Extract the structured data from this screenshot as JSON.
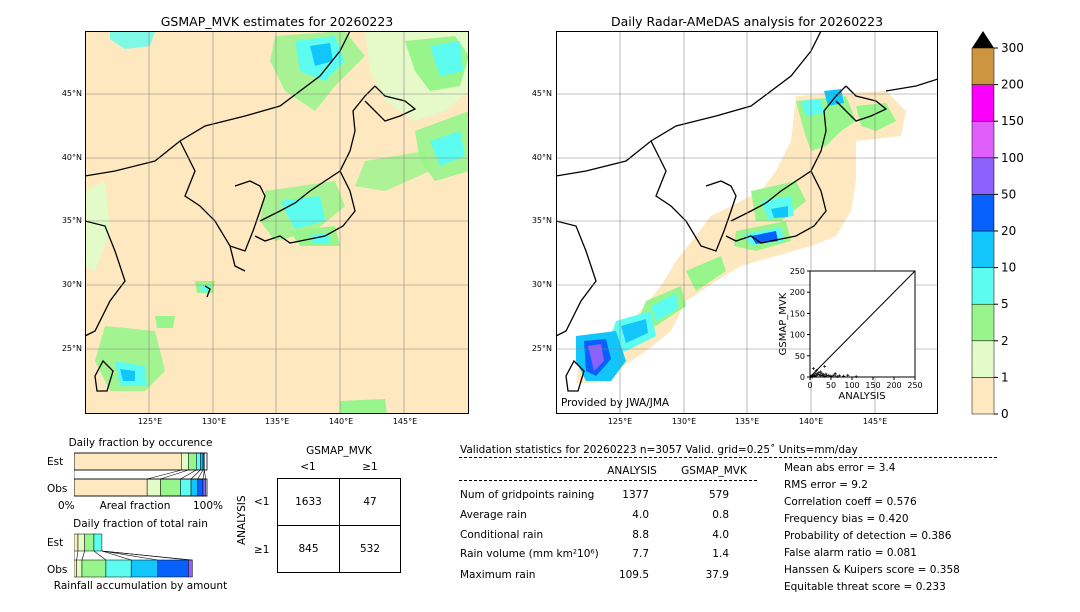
{
  "left_map": {
    "title": "GSMAP_MVK estimates for 20260223",
    "lon_labels": [
      "125°E",
      "130°E",
      "135°E",
      "140°E",
      "145°E"
    ],
    "lat_labels": [
      "45°N",
      "40°N",
      "35°N",
      "30°N",
      "25°N"
    ]
  },
  "right_map": {
    "title": "Daily Radar-AMeDAS analysis for 20260223",
    "lon_labels": [
      "125°E",
      "130°E",
      "135°E",
      "140°E",
      "145°E"
    ],
    "lat_labels": [
      "45°N",
      "40°N",
      "35°N",
      "30°N",
      "25°N"
    ],
    "credit": "Provided by JWA/JMA"
  },
  "scatter": {
    "xlabel": "ANALYSIS",
    "ylabel": "GSMAP_MVK",
    "ticks": [
      "0",
      "50",
      "100",
      "150",
      "200",
      "250"
    ]
  },
  "colorbar": {
    "labels": [
      "0",
      "1",
      "2",
      "5",
      "10",
      "20",
      "50",
      "100",
      "150",
      "200",
      "300"
    ],
    "colors": [
      "#fde8bf",
      "#e3fbc9",
      "#98f58b",
      "#5cfcf0",
      "#12c6fb",
      "#0660fb",
      "#8d61fb",
      "#e05ffb",
      "#fb00fb",
      "#cd9540"
    ],
    "extend_color": "#000000"
  },
  "occurrence": {
    "title": "Daily fraction by occurence",
    "row_est": "Est",
    "row_obs": "Obs",
    "axis_left": "0%",
    "axis_mid": "Areal fraction",
    "axis_right": "100%"
  },
  "total_rain": {
    "title": "Daily fraction of total rain",
    "row_est": "Est",
    "row_obs": "Obs",
    "footer": "Rainfall accumulation by amount"
  },
  "contingency": {
    "col_title": "GSMAP_MVK",
    "col_lt": "<1",
    "col_ge": "≥1",
    "row_title": "ANALYSIS",
    "row_lt": "<1",
    "row_ge": "≥1",
    "a": "1633",
    "b": "47",
    "c": "845",
    "d": "532"
  },
  "validation": {
    "header": "Validation statistics for 20260223  n=3057 Valid. grid=0.25˚ Units=mm/day",
    "col_analysis": "ANALYSIS",
    "col_gsmap": "GSMAP_MVK",
    "rows": [
      {
        "label": "Num of gridpoints raining",
        "analysis": "1377",
        "gsmap": "579"
      },
      {
        "label": "Average rain",
        "analysis": "4.0",
        "gsmap": "0.8"
      },
      {
        "label": "Conditional rain",
        "analysis": "8.8",
        "gsmap": "4.0"
      },
      {
        "label": "Rain volume (mm km²10⁶)",
        "analysis": "7.7",
        "gsmap": "1.4"
      },
      {
        "label": "Maximum rain",
        "analysis": "109.5",
        "gsmap": "37.9"
      }
    ],
    "scores": [
      "Mean abs error =    3.4",
      "RMS error =    9.2",
      "Correlation coeff =  0.576",
      "Frequency bias =  0.420",
      "Probability of detection =  0.386",
      "False alarm ratio =  0.081",
      "Hanssen & Kuipers score =  0.358",
      "Equitable threat score =  0.233"
    ]
  },
  "chart_data": [
    {
      "type": "bar",
      "title": "Daily fraction by occurence",
      "categories": [
        "Est",
        "Obs"
      ],
      "series": [
        {
          "values": [
            0.81,
            0.55
          ]
        },
        {
          "values": [
            0.05,
            0.1
          ]
        },
        {
          "values": [
            0.06,
            0.15
          ]
        },
        {
          "values": [
            0.03,
            0.08
          ]
        },
        {
          "values": [
            0.02,
            0.05
          ]
        },
        {
          "values": [
            0.01,
            0.04
          ]
        },
        {
          "values": [
            0.0,
            0.02
          ]
        }
      ],
      "xlim": [
        0,
        1
      ]
    },
    {
      "type": "bar",
      "title": "Daily fraction of total rain",
      "categories": [
        "Est",
        "Obs"
      ],
      "series": [
        {
          "values": [
            0.03,
            0.02
          ]
        },
        {
          "values": [
            0.05,
            0.04
          ]
        },
        {
          "values": [
            0.07,
            0.18
          ]
        },
        {
          "values": [
            0.06,
            0.19
          ]
        },
        {
          "values": [
            0.0,
            0.2
          ]
        },
        {
          "values": [
            0.0,
            0.23
          ]
        },
        {
          "values": [
            0.0,
            0.03
          ]
        }
      ],
      "xlim": [
        0,
        1
      ]
    },
    {
      "type": "scatter",
      "xlabel": "ANALYSIS",
      "ylabel": "GSMAP_MVK",
      "xlim": [
        0,
        250
      ],
      "ylim": [
        0,
        250
      ],
      "x": [
        2,
        4,
        5,
        6,
        8,
        10,
        12,
        14,
        15,
        18,
        20,
        22,
        25,
        28,
        30,
        32,
        35,
        38,
        40,
        45,
        50,
        55,
        60,
        65,
        70,
        80,
        90,
        110,
        8,
        15,
        25,
        35,
        60
      ],
      "y": [
        1,
        2,
        3,
        0,
        5,
        4,
        2,
        8,
        3,
        6,
        10,
        5,
        4,
        9,
        3,
        6,
        2,
        7,
        3,
        4,
        2,
        3,
        5,
        1,
        3,
        2,
        4,
        1,
        20,
        15,
        12,
        25,
        8
      ]
    }
  ]
}
